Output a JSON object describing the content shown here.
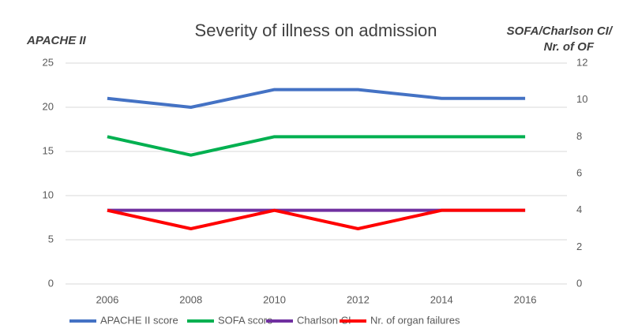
{
  "chart_data": {
    "type": "line",
    "title": "Severity of illness on admission",
    "y_label": "APACHE II",
    "y2_label": [
      "SOFA/Charlson CI/",
      "Nr. of OF"
    ],
    "categories": [
      "2006",
      "2008",
      "2010",
      "2012",
      "2014",
      "2016"
    ],
    "series": [
      {
        "name": "APACHE II score",
        "color": "#4472c4",
        "values": [
          21,
          20,
          22,
          22,
          21,
          21
        ]
      },
      {
        "name": "SOFA score",
        "color": "#00b050",
        "axis": "y2",
        "values": [
          8,
          7,
          8,
          8,
          8,
          8
        ]
      },
      {
        "name": "Charlson CI",
        "color": "#7030a0",
        "axis": "y2",
        "values": [
          4,
          4,
          4,
          4,
          4,
          4
        ]
      },
      {
        "name": "Nr. of organ failures",
        "color": "#ff0000",
        "axis": "y2",
        "values": [
          4,
          3,
          4,
          3,
          4,
          4
        ]
      }
    ],
    "ylim": [
      0,
      25
    ],
    "yticks": [
      0,
      5,
      10,
      15,
      20,
      25
    ],
    "y2lim": [
      0,
      12
    ],
    "y2ticks": [
      0,
      2,
      4,
      6,
      8,
      10,
      12
    ],
    "grid": true,
    "legend": "bottom"
  }
}
